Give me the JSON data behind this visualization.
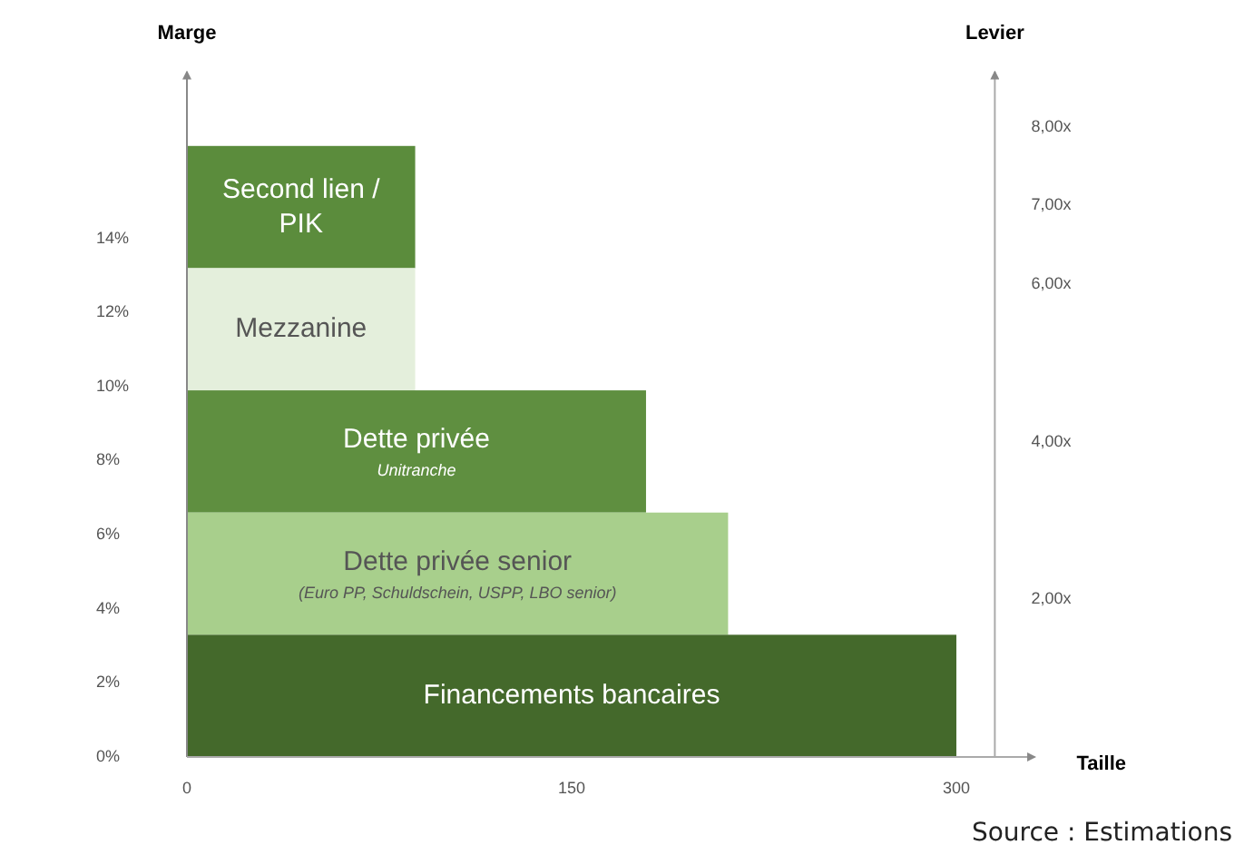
{
  "chart_data": {
    "type": "bar",
    "orientation": "horizontal",
    "xlabel": "Taille",
    "y2label": "Marge",
    "y3label": "Levier",
    "categories": [
      "Second lien / PIK",
      "Mezzanine",
      "Dette privée\nUnitranche",
      "Dette privée senior\n(Euro PP, Schuldschein, USPP, LBO senior)",
      "Financements bancaires"
    ],
    "values": [
      89,
      89,
      179,
      211,
      300
    ],
    "colors": [
      "#5b8c3c",
      "#e4efdc",
      "#5f8f40",
      "#a8cf8c",
      "#44692b"
    ],
    "xlim": [
      0,
      315
    ],
    "xticks": [
      0,
      150,
      300
    ],
    "y2lim": [
      0,
      16.5
    ],
    "y2ticks": [
      {
        "value": 0,
        "label": "0%"
      },
      {
        "value": 2,
        "label": "2%"
      },
      {
        "value": 4,
        "label": "4%"
      },
      {
        "value": 6,
        "label": "6%"
      },
      {
        "value": 8,
        "label": "8%"
      },
      {
        "value": 10,
        "label": "10%"
      },
      {
        "value": 12,
        "label": "12%"
      },
      {
        "value": 14,
        "label": "14%"
      }
    ],
    "y3lim": [
      0,
      8.7
    ],
    "y3ticks": [
      {
        "value": 2,
        "label": "2,00x"
      },
      {
        "value": 4,
        "label": "4,00x"
      },
      {
        "value": 6,
        "label": "6,00x"
      },
      {
        "value": 7,
        "label": "7,00x"
      },
      {
        "value": 8,
        "label": "8,00x"
      }
    ],
    "annotations": [
      "Source : Estimations"
    ]
  }
}
